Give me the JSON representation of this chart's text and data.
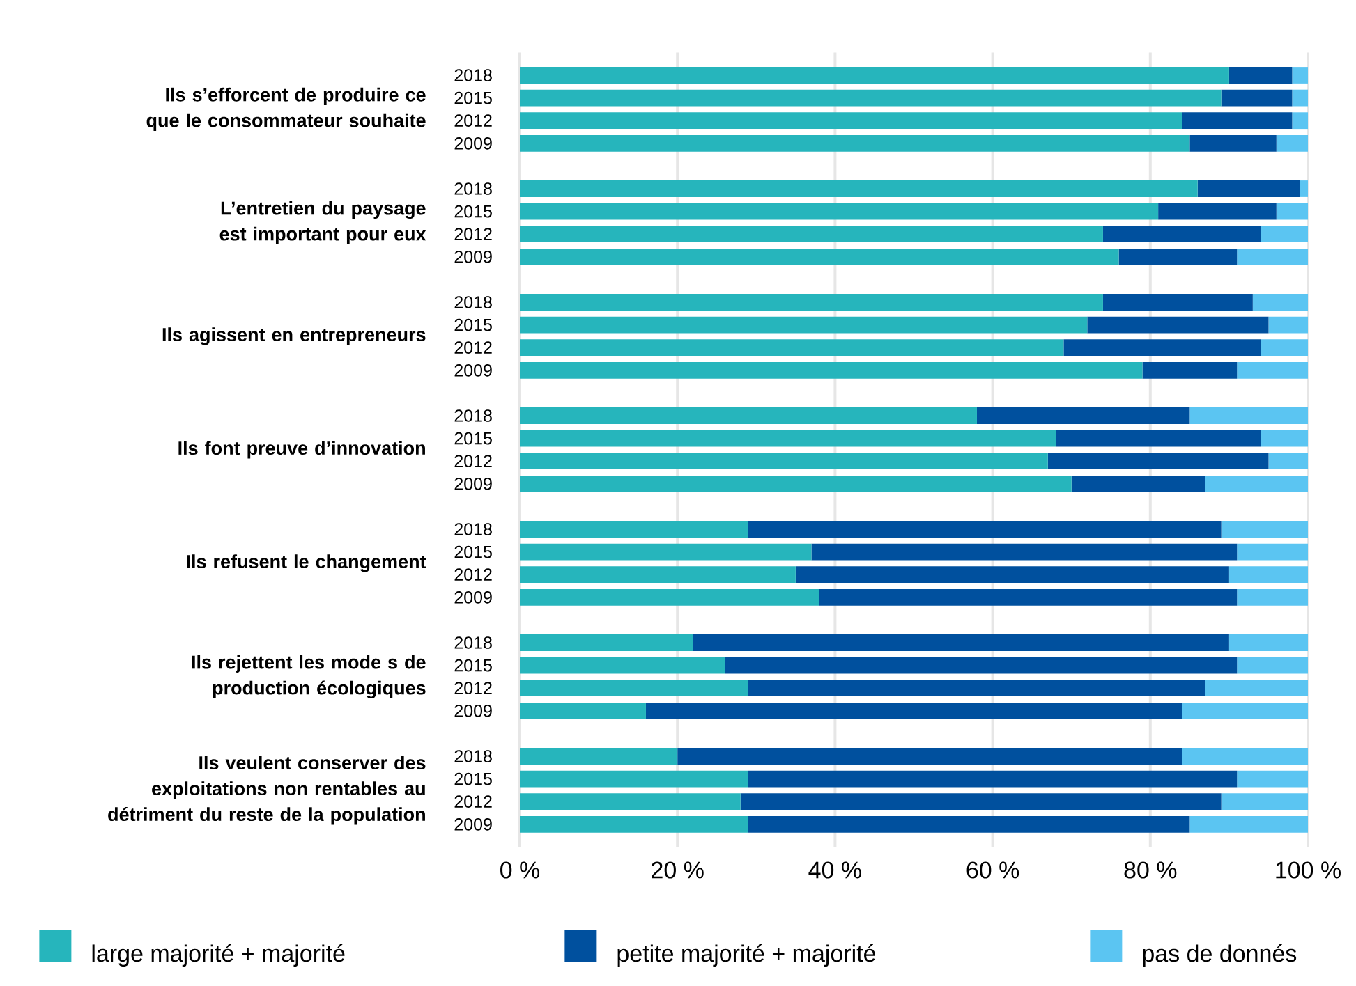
{
  "chart_data": {
    "type": "bar",
    "orientation": "horizontal",
    "stacked": true,
    "categories": [
      "2018",
      "2015",
      "2012",
      "2009",
      null,
      "2018",
      "2015",
      "2012",
      "2009",
      null,
      "2018",
      "2015",
      "2012",
      "2009",
      null,
      "2018",
      "2015",
      "2012",
      "2009",
      null,
      "2018",
      "2015",
      "2012",
      "2009",
      null,
      "2018",
      "2015",
      "2012",
      "2009",
      null,
      "2018",
      "2015",
      "2012",
      "2009"
    ],
    "series": [
      {
        "name": "large majorité + majorité",
        "color": "#26b5bc",
        "values": [
          90,
          89,
          84,
          85,
          null,
          86,
          81,
          74,
          76,
          null,
          74,
          72,
          69,
          79,
          null,
          58,
          68,
          67,
          70,
          null,
          29,
          37,
          35,
          38,
          null,
          22,
          26,
          29,
          16,
          null,
          20,
          29,
          28,
          29
        ]
      },
      {
        "name": "petite majorité + majorité",
        "color": "#00509e",
        "values": [
          8,
          9,
          14,
          11,
          null,
          13,
          15,
          20,
          15,
          null,
          19,
          23,
          25,
          12,
          null,
          27,
          26,
          28,
          17,
          null,
          60,
          54,
          55,
          53,
          null,
          68,
          65,
          58,
          68,
          null,
          64,
          62,
          61,
          56
        ]
      },
      {
        "name": "pas de donnés",
        "color": "#5bc5f2",
        "values": [
          2,
          2,
          2,
          4,
          null,
          1,
          4,
          6,
          9,
          null,
          7,
          5,
          6,
          9,
          null,
          15,
          6,
          5,
          13,
          null,
          11,
          9,
          10,
          9,
          null,
          10,
          9,
          13,
          16,
          null,
          16,
          9,
          11,
          15
        ]
      }
    ],
    "xlim": [
      0,
      100
    ],
    "xticks": [
      {
        "value": 0,
        "label": "0 %"
      },
      {
        "value": 20,
        "label": "20 %"
      },
      {
        "value": 40,
        "label": "40 %"
      },
      {
        "value": 60,
        "label": "60 %"
      },
      {
        "value": 80,
        "label": "80 %"
      },
      {
        "value": 100,
        "label": "100 %"
      }
    ],
    "grid": "x",
    "legend": "bottom",
    "annotations": [
      "Ils s’efforcent de produire ce que le consommateur souhaite",
      "L’entretien du paysage est important pour eux",
      "Ils agissent en entrepreneurs",
      "Ils font preuve d’innovation",
      "Ils refusent le changement",
      "Ils rejettent les mode s de production écologiques",
      "Ils veulent conserver des exploitations non rentables au détriment du reste de la population"
    ]
  }
}
